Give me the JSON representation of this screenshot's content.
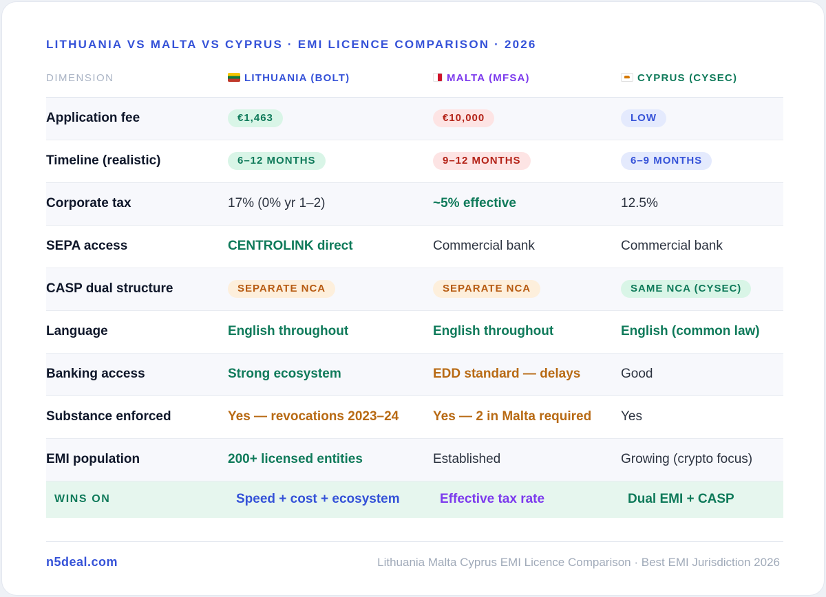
{
  "title": "LITHUANIA VS MALTA VS CYPRUS · EMI LICENCE COMPARISON · 2026",
  "header": {
    "dimension": "DIMENSION",
    "lithuania": "LITHUANIA (BOLT)",
    "malta": "MALTA (MFSA)",
    "cyprus": "CYPRUS (CYSEC)"
  },
  "rows": [
    {
      "label": "Application fee",
      "lithuania": "€1,463",
      "malta": "€10,000",
      "cyprus": "LOW"
    },
    {
      "label": "Timeline (realistic)",
      "lithuania": "6–12 MONTHS",
      "malta": "9–12 MONTHS",
      "cyprus": "6–9 MONTHS"
    },
    {
      "label": "Corporate tax",
      "lithuania": "17% (0% yr 1–2)",
      "malta": "~5% effective",
      "cyprus": "12.5%"
    },
    {
      "label": "SEPA access",
      "lithuania": "CENTROLINK direct",
      "malta": "Commercial bank",
      "cyprus": "Commercial bank"
    },
    {
      "label": "CASP dual structure",
      "lithuania": "SEPARATE NCA",
      "malta": "SEPARATE NCA",
      "cyprus": "SAME NCA (CYSEC)"
    },
    {
      "label": "Language",
      "lithuania": "English throughout",
      "malta": "English throughout",
      "cyprus": "English (common law)"
    },
    {
      "label": "Banking access",
      "lithuania": "Strong ecosystem",
      "malta": "EDD standard — delays",
      "cyprus": "Good"
    },
    {
      "label": "Substance enforced",
      "lithuania": "Yes — revocations 2023–24",
      "malta": "Yes — 2 in Malta required",
      "cyprus": "Yes"
    },
    {
      "label": "EMI population",
      "lithuania": "200+ licensed entities",
      "malta": "Established",
      "cyprus": "Growing (crypto focus)"
    }
  ],
  "wins": {
    "label": "WINS ON",
    "lithuania": "Speed + cost + ecosystem",
    "malta": "Effective tax rate",
    "cyprus": "Dual EMI + CASP"
  },
  "footer": {
    "brand": "n5deal.com",
    "note": "Lithuania Malta Cyprus EMI Licence Comparison · Best EMI Jurisdiction 2026"
  },
  "colors": {
    "accent_blue": "#3552d8",
    "accent_purple": "#7c3aed",
    "accent_green": "#0f7a5a",
    "warning_orange": "#b86a14",
    "danger_red": "#b42318"
  },
  "icons": {
    "lithuania": "lithuania-flag-icon",
    "malta": "malta-flag-icon",
    "cyprus": "cyprus-flag-icon"
  }
}
